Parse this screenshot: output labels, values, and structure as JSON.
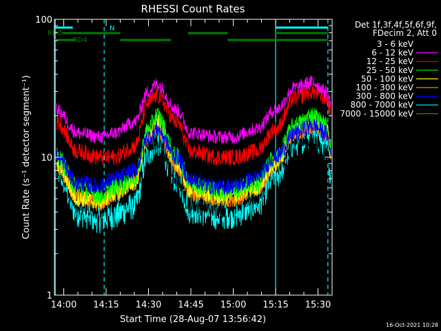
{
  "chart_data": {
    "type": "line",
    "title": "RHESSI Count Rates",
    "xlabel": "Start Time (28-Aug-07 13:56:42)",
    "ylabel": "Count Rate (s⁻¹ detector segment⁻¹)",
    "y_scale": "log",
    "ylim": [
      1,
      100
    ],
    "y_ticks": [
      "1",
      "10",
      "100"
    ],
    "x_ticks": [
      "14:00",
      "14:15",
      "14:30",
      "14:45",
      "15:00",
      "15:15",
      "15:30"
    ],
    "x_tick_minutes": [
      0,
      15,
      30,
      45,
      60,
      75,
      90
    ],
    "xlim_minutes": [
      -3.3,
      95
    ],
    "legend_header": [
      "Det 1f,3f,4f,5f,6f,9f,",
      "FDecim 2, Att 0"
    ],
    "legend_position": "right",
    "footer_date": "16-Oct-2021 10:28",
    "series": [
      {
        "name": "3 - 6 keV",
        "color": "#000000",
        "x": [
          -2.5,
          5,
          13,
          18,
          25,
          30,
          33,
          40,
          45,
          55,
          60,
          68,
          75,
          82,
          88,
          93,
          94.5
        ],
        "values": [
          8.5,
          4.5,
          4.2,
          5,
          5.5,
          13,
          13,
          7,
          4.5,
          4.2,
          4.5,
          5.2,
          8.5,
          13,
          13,
          11,
          9
        ]
      },
      {
        "name": "6 - 12 keV",
        "color": "#ff00ff",
        "x": [
          -2.5,
          5,
          13,
          18,
          25,
          30,
          33,
          40,
          45,
          55,
          60,
          68,
          75,
          82,
          88,
          93,
          94.5
        ],
        "values": [
          22,
          15,
          14,
          15,
          18,
          30,
          34,
          22,
          15,
          14,
          14,
          16,
          22,
          32,
          35,
          30,
          25
        ]
      },
      {
        "name": "12 - 25 keV",
        "color": "#ff0000",
        "x": [
          -2.5,
          5,
          13,
          18,
          25,
          30,
          33,
          40,
          45,
          55,
          60,
          68,
          75,
          82,
          88,
          93,
          94.5
        ],
        "values": [
          18,
          11,
          10,
          10,
          12,
          25,
          28,
          18,
          11,
          10,
          10,
          11,
          16,
          27,
          30,
          27,
          22
        ]
      },
      {
        "name": "25 - 50 keV",
        "color": "#00ff00",
        "x": [
          -2.5,
          5,
          13,
          18,
          25,
          30,
          33,
          40,
          45,
          55,
          60,
          68,
          75,
          82,
          88,
          93,
          94.5
        ],
        "values": [
          10,
          6,
          5.3,
          6,
          7,
          16,
          20,
          10,
          6.5,
          5.7,
          5.8,
          6.5,
          10,
          17,
          20,
          17,
          12
        ]
      },
      {
        "name": "50 - 100 keV",
        "color": "#ffff00",
        "x": [
          -2.5,
          5,
          13,
          18,
          25,
          30,
          33,
          40,
          45,
          55,
          60,
          68,
          75,
          82,
          88,
          93,
          94.5
        ],
        "values": [
          9,
          5,
          4.8,
          5.5,
          6.5,
          15,
          18,
          9,
          5.8,
          5.2,
          5.3,
          6,
          9,
          16,
          18,
          16,
          11
        ]
      },
      {
        "name": "100 - 300 keV",
        "color": "#ff8000",
        "x": [
          -2.5,
          5,
          13,
          18,
          25,
          30,
          33,
          40,
          45,
          55,
          60,
          68,
          75,
          82,
          88,
          93,
          94.5
        ],
        "values": [
          8.5,
          5,
          4.6,
          5.3,
          6.5,
          14,
          16,
          8.5,
          5.5,
          4.9,
          5,
          5.8,
          8.8,
          15,
          17,
          15,
          10.5
        ]
      },
      {
        "name": "300 - 800 keV",
        "color": "#0000ff",
        "x": [
          -2.5,
          5,
          13,
          18,
          25,
          30,
          33,
          40,
          45,
          55,
          60,
          68,
          75,
          82,
          88,
          93,
          94.5
        ],
        "values": [
          10,
          6.5,
          6.2,
          7,
          8,
          14,
          16,
          10,
          6.8,
          6,
          6.2,
          7,
          10,
          15,
          17,
          15,
          11
        ]
      },
      {
        "name": "800 - 7000 keV",
        "color": "#00ffff",
        "x": [
          -2.5,
          5,
          13,
          18,
          25,
          30,
          33,
          40,
          45,
          55,
          60,
          68,
          75,
          82,
          88,
          93,
          94.5
        ],
        "values": [
          8,
          4,
          3.6,
          3.8,
          4.5,
          11,
          13,
          7,
          4.2,
          3.8,
          3.9,
          4.5,
          7.5,
          13,
          15,
          12,
          8
        ]
      },
      {
        "name": "7000 - 15000 keV",
        "color": "#808000",
        "x": [
          -2.5,
          5,
          13,
          18,
          25,
          30,
          33,
          40,
          45,
          55,
          60,
          68,
          75,
          82,
          88,
          93,
          94.5
        ],
        "values": [
          8.8,
          5.2,
          4.8,
          5.5,
          6.6,
          14.5,
          17,
          8.8,
          5.6,
          5,
          5.1,
          5.9,
          9,
          15.5,
          17.5,
          15.5,
          10.8
        ]
      }
    ],
    "status_bars": [
      {
        "label": "N",
        "color": "#00ffff",
        "segments": [
          [
            -3.3,
            3.2
          ],
          [
            75,
            93.5
          ]
        ]
      },
      {
        "label": "RD0",
        "color": "#008000",
        "segments": [
          [
            -0.5,
            7
          ],
          [
            7,
            20
          ],
          [
            44,
            58
          ],
          [
            75,
            93.5
          ]
        ]
      },
      {
        "label": "RD4",
        "color": "#008000",
        "segments": [
          [
            -3.3,
            4
          ],
          [
            20,
            38
          ],
          [
            58,
            71
          ],
          [
            71,
            93.5
          ]
        ]
      }
    ],
    "vlines_solid": [
      -3,
      75
    ],
    "vlines_dashed": [
      14.3,
      93.5
    ]
  }
}
